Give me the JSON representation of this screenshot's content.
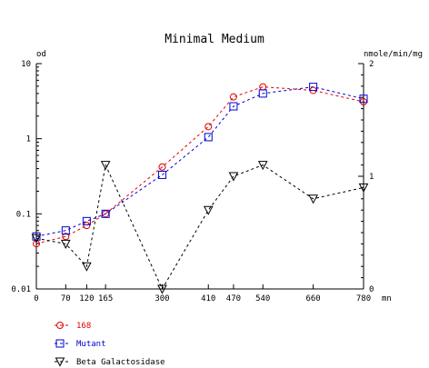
{
  "chart_data": {
    "type": "line",
    "title": "Minimal Medium",
    "x": [
      0,
      70,
      120,
      165,
      300,
      410,
      470,
      540,
      660,
      780
    ],
    "xticks": [
      "0",
      "70",
      "120",
      "165",
      "300",
      "410",
      "470",
      "540",
      "660",
      "780"
    ],
    "xunit": "mn",
    "xlim": [
      0,
      780
    ],
    "left_axis": {
      "label": "od",
      "scale": "log",
      "lim": [
        0.01,
        10
      ],
      "ticks": [
        "0.01",
        "0.1",
        "1",
        "10"
      ]
    },
    "right_axis": {
      "label": "nmole/min/mg",
      "scale": "linear",
      "lim": [
        0,
        2
      ],
      "ticks": [
        "0",
        "1",
        "2"
      ]
    },
    "grid": false,
    "legend_position": "bottom-left",
    "series": [
      {
        "name": "168",
        "axis": "left",
        "marker": "circle",
        "color": "#e00000",
        "dash": "dashed",
        "values": [
          0.04,
          0.05,
          0.07,
          0.1,
          0.42,
          1.45,
          3.6,
          4.9,
          4.4,
          3.1
        ]
      },
      {
        "name": "Mutant",
        "axis": "left",
        "marker": "square",
        "color": "#0000d0",
        "dash": "dashed",
        "values": [
          0.05,
          0.06,
          0.08,
          0.1,
          0.33,
          1.05,
          2.7,
          4.0,
          4.9,
          3.4
        ]
      },
      {
        "name": "Beta Galactosidase",
        "axis": "right",
        "marker": "triangle-down",
        "color": "#000000",
        "dash": "dashed",
        "values": [
          0.45,
          0.4,
          0.2,
          1.1,
          0.0,
          0.7,
          1.0,
          1.1,
          0.8,
          0.9
        ]
      }
    ]
  }
}
